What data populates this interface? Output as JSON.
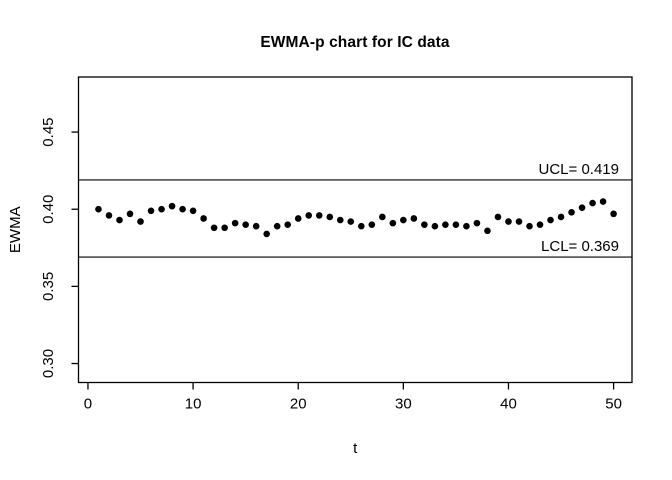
{
  "chart_data": {
    "type": "scatter",
    "title": "EWMA-p chart for IC data",
    "xlabel": "t",
    "ylabel": "EWMA",
    "x_ticks": [
      0,
      10,
      20,
      30,
      40,
      50
    ],
    "x_tick_labels": [
      "0",
      "10",
      "20",
      "30",
      "40",
      "50"
    ],
    "y_ticks": [
      0.3,
      0.35,
      0.4,
      0.45
    ],
    "y_tick_labels": [
      "0.30",
      "0.35",
      "0.40",
      "0.45"
    ],
    "xlim": [
      -0.9,
      51.75
    ],
    "ylim": [
      0.2877,
      0.4857
    ],
    "grid": false,
    "control_limits": {
      "ucl": {
        "value": 0.419,
        "label": "UCL= 0.419"
      },
      "lcl": {
        "value": 0.369,
        "label": "LCL= 0.369"
      }
    },
    "x": [
      1,
      2,
      3,
      4,
      5,
      6,
      7,
      8,
      9,
      10,
      11,
      12,
      13,
      14,
      15,
      16,
      17,
      18,
      19,
      20,
      21,
      22,
      23,
      24,
      25,
      26,
      27,
      28,
      29,
      30,
      31,
      32,
      33,
      34,
      35,
      36,
      37,
      38,
      39,
      40,
      41,
      42,
      43,
      44,
      45,
      46,
      47,
      48,
      49,
      50
    ],
    "y": [
      0.4,
      0.396,
      0.393,
      0.397,
      0.392,
      0.399,
      0.4,
      0.402,
      0.4,
      0.399,
      0.394,
      0.388,
      0.388,
      0.391,
      0.39,
      0.389,
      0.384,
      0.389,
      0.39,
      0.394,
      0.396,
      0.396,
      0.395,
      0.393,
      0.392,
      0.389,
      0.39,
      0.395,
      0.391,
      0.393,
      0.394,
      0.39,
      0.389,
      0.39,
      0.39,
      0.389,
      0.391,
      0.386,
      0.395,
      0.392,
      0.392,
      0.389,
      0.39,
      0.393,
      0.395,
      0.398,
      0.401,
      0.404,
      0.405,
      0.397
    ]
  },
  "colors": {
    "point": "#000000",
    "line": "#000000",
    "axis": "#000000",
    "background": "#ffffff"
  }
}
